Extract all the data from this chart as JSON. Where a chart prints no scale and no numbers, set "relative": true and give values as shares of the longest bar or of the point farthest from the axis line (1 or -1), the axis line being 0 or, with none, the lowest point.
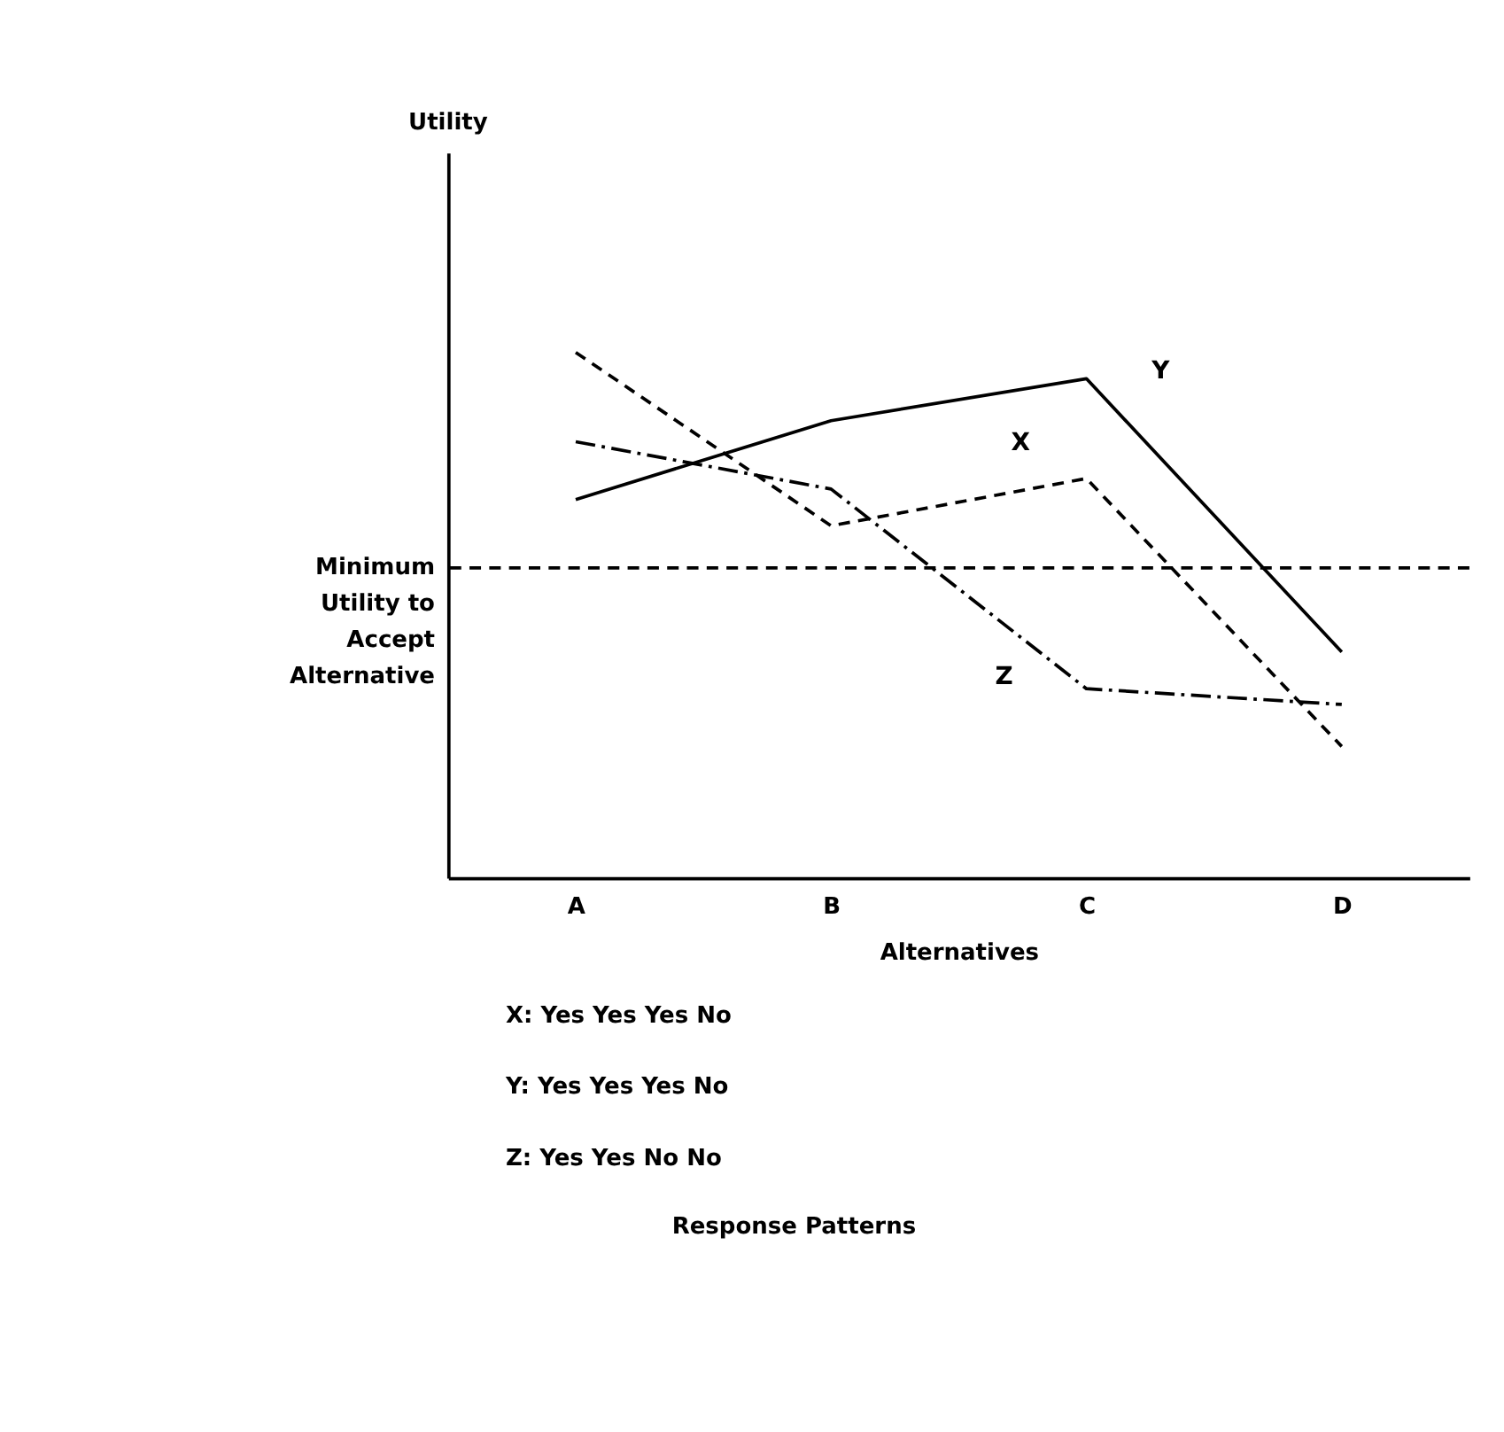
{
  "chart_data": {
    "type": "line",
    "relative": true,
    "xlabel": "Alternatives",
    "categories": [
      "A",
      "B",
      "C",
      "D"
    ],
    "series": [
      {
        "name": "X",
        "color": "#000000",
        "line_style": "dashed",
        "values": [
          1.0,
          0.67,
          0.76,
          0.25
        ]
      },
      {
        "name": "Y",
        "color": "#000000",
        "line_style": "solid",
        "values": [
          0.72,
          0.87,
          0.95,
          0.43
        ]
      },
      {
        "name": "Z",
        "color": "#000000",
        "line_style": "dashdot",
        "values": [
          0.83,
          0.74,
          0.36,
          0.33
        ]
      }
    ],
    "ref_lines": [
      {
        "axis": "y",
        "value": 0.59,
        "label": "Minimum Utility to Accept Alternative",
        "color": "#000000",
        "line_style": "dashed"
      }
    ],
    "annotations": [
      "Utility",
      "X: Yes Yes Yes No",
      "Y: Yes Yes Yes No",
      "Z: Yes Yes No No",
      "Response Patterns"
    ],
    "grid": false,
    "marker": "none"
  }
}
